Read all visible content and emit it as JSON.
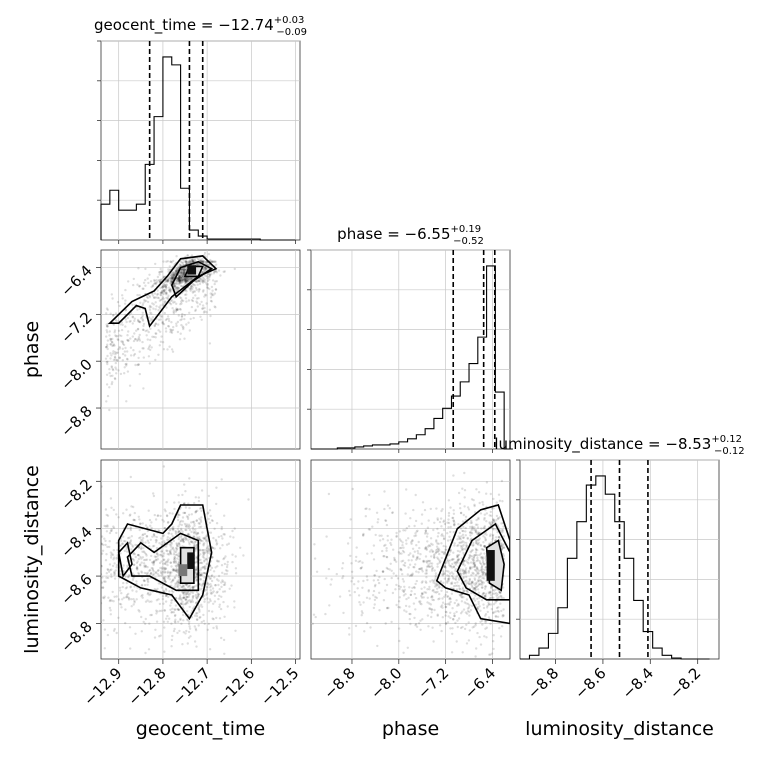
{
  "chart_data": {
    "type": "corner",
    "parameters": [
      "geocent_time",
      "phase",
      "luminosity_distance"
    ],
    "titles": [
      {
        "param": "geocent_time",
        "prefix": "geocent_time = ",
        "value": "−12.74",
        "plus": "+0.03",
        "minus": "−0.09"
      },
      {
        "param": "phase",
        "prefix": "phase = ",
        "value": "−6.55",
        "plus": "+0.19",
        "minus": "−0.52"
      },
      {
        "param": "luminosity_distance",
        "prefix": "luminosity_distance = ",
        "value": "−8.53",
        "plus": "+0.12",
        "minus": "−0.12"
      }
    ],
    "axis_labels": [
      "geocent_time",
      "phase",
      "luminosity_distance"
    ],
    "ranges": [
      [
        -12.94,
        -12.49
      ],
      [
        -9.5,
        -6.1
      ],
      [
        -8.95,
        -8.11
      ]
    ],
    "ticks": [
      {
        "values": [
          -12.9,
          -12.8,
          -12.7,
          -12.6,
          -12.5
        ],
        "labels": [
          "−12.9",
          "−12.8",
          "−12.7",
          "−12.6",
          "−12.5"
        ]
      },
      {
        "values": [
          -8.8,
          -8.0,
          -7.2,
          -6.4
        ],
        "labels": [
          "−8.8",
          "−8.0",
          "−7.2",
          "−6.4"
        ]
      },
      {
        "values": [
          -8.8,
          -8.6,
          -8.4,
          -8.2
        ],
        "labels": [
          "−8.8",
          "−8.6",
          "−8.4",
          "−8.2"
        ]
      }
    ],
    "histograms": [
      {
        "param": "geocent_time",
        "edges": [
          -12.94,
          -12.92,
          -12.9,
          -12.88,
          -12.86,
          -12.84,
          -12.82,
          -12.8,
          -12.78,
          -12.76,
          -12.74,
          -12.72,
          -12.7,
          -12.68,
          -12.66,
          -12.64,
          -12.62,
          -12.6,
          -12.58,
          -12.56,
          -12.54,
          -12.52,
          -12.5
        ],
        "counts": [
          0.18,
          0.25,
          0.15,
          0.15,
          0.18,
          0.38,
          0.62,
          0.92,
          0.88,
          0.26,
          0.05,
          0.02,
          0.005,
          0.005,
          0.005,
          0.005,
          0.005,
          0.005,
          0,
          0,
          0,
          0
        ],
        "quantiles": [
          -12.83,
          -12.74,
          -12.71
        ]
      },
      {
        "param": "phase",
        "edges": [
          -9.5,
          -9.35,
          -9.2,
          -9.05,
          -8.9,
          -8.75,
          -8.6,
          -8.45,
          -8.3,
          -8.15,
          -8.0,
          -7.85,
          -7.7,
          -7.55,
          -7.4,
          -7.25,
          -7.1,
          -6.95,
          -6.8,
          -6.65,
          -6.5,
          -6.35,
          -6.2,
          -6.05
        ],
        "counts": [
          0,
          0,
          0,
          0.005,
          0.005,
          0.01,
          0.015,
          0.02,
          0.02,
          0.025,
          0.035,
          0.05,
          0.07,
          0.1,
          0.15,
          0.2,
          0.26,
          0.33,
          0.42,
          0.55,
          0.9,
          0.28,
          0
        ],
        "quantiles": [
          -7.07,
          -6.55,
          -6.36
        ]
      },
      {
        "param": "luminosity_distance",
        "edges": [
          -8.95,
          -8.91,
          -8.87,
          -8.83,
          -8.79,
          -8.75,
          -8.71,
          -8.67,
          -8.63,
          -8.59,
          -8.55,
          -8.51,
          -8.47,
          -8.43,
          -8.39,
          -8.35,
          -8.31,
          -8.27,
          -8.23,
          -8.19,
          -8.15
        ],
        "counts": [
          0,
          0.02,
          0.06,
          0.14,
          0.28,
          0.55,
          0.75,
          0.95,
          1.0,
          0.9,
          0.75,
          0.55,
          0.32,
          0.15,
          0.06,
          0.02,
          0.005,
          0,
          0,
          0
        ],
        "quantiles": [
          -8.65,
          -8.53,
          -8.41
        ]
      }
    ],
    "pair_densities": [
      {
        "x": "geocent_time",
        "y": "phase",
        "peak": [
          -12.73,
          -6.45
        ],
        "ridge": [
          [
            -12.92,
            -7.45
          ],
          [
            -12.85,
            -7.05
          ],
          [
            -12.79,
            -6.7
          ],
          [
            -12.74,
            -6.45
          ],
          [
            -12.7,
            -6.35
          ],
          [
            -12.66,
            -6.45
          ]
        ]
      },
      {
        "x": "geocent_time",
        "y": "luminosity_distance",
        "peak": [
          -12.74,
          -8.55
        ],
        "center": [
          -12.79,
          -8.56
        ]
      },
      {
        "x": "phase",
        "y": "luminosity_distance",
        "peak": [
          -6.45,
          -8.55
        ],
        "center": [
          -6.95,
          -8.56
        ]
      }
    ]
  }
}
